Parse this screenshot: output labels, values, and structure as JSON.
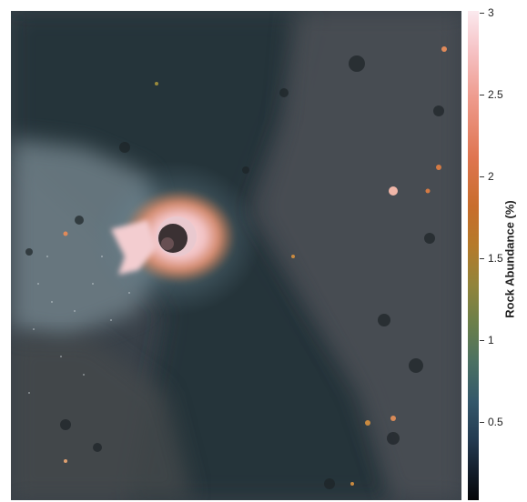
{
  "colorbar": {
    "label": "Rock Abundance (%)",
    "ticks": [
      "3",
      "2.5",
      "2",
      "1.5",
      "1",
      "0.5"
    ],
    "min": 0,
    "max": 3,
    "colors": [
      "#fbe9ee",
      "#ee9a8c",
      "#c86d2c",
      "#6a7f4a",
      "#23394f",
      "#050608"
    ]
  }
}
